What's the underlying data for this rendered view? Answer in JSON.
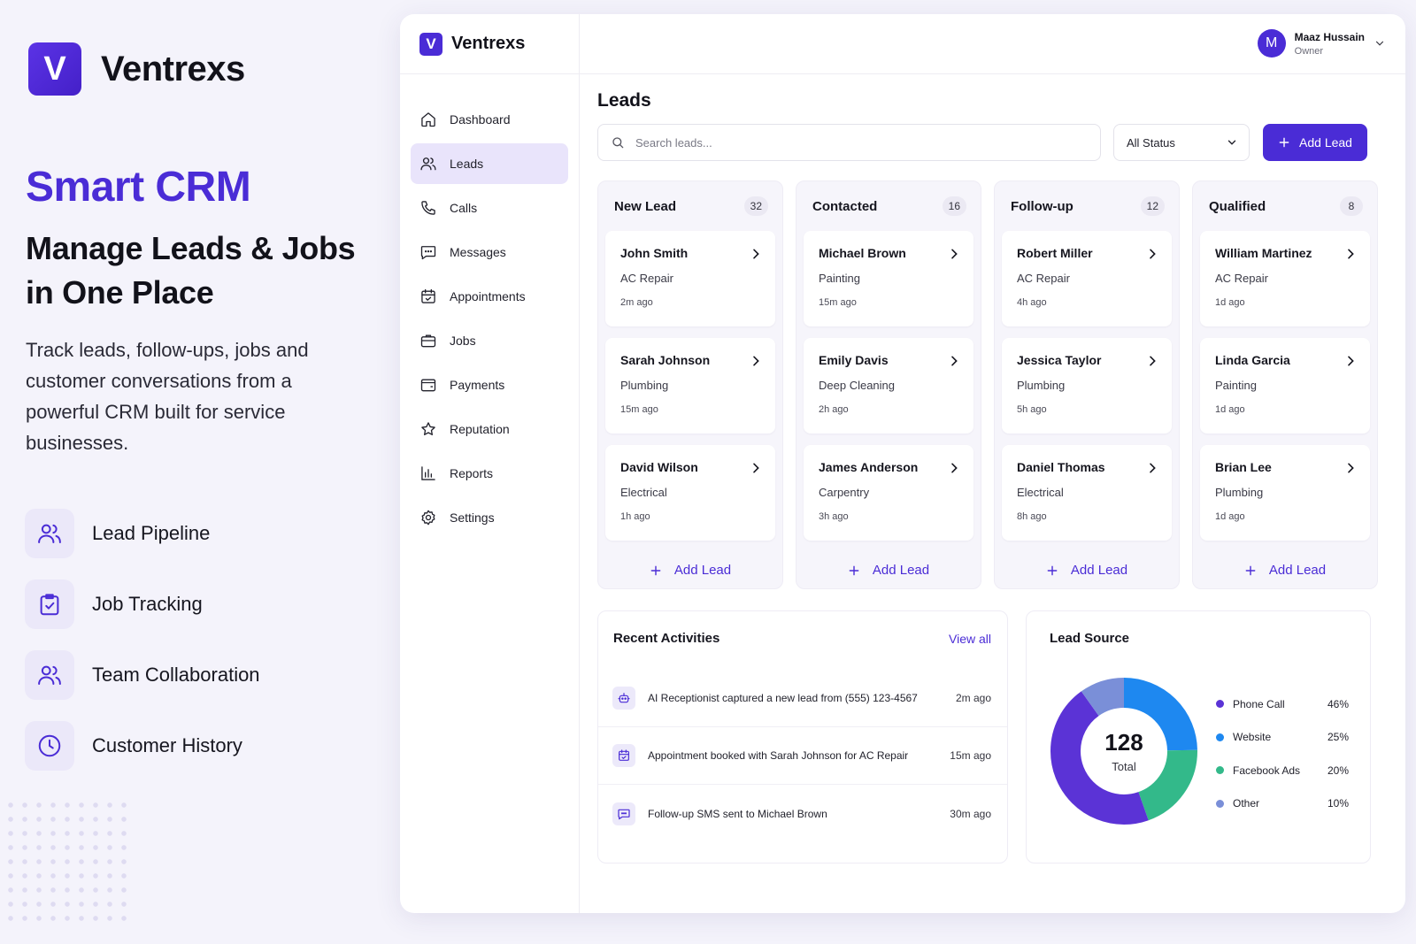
{
  "hero": {
    "brand_initial": "V",
    "brand_name": "Ventrexs",
    "kicker": "Smart CRM",
    "title": "Manage Leads & Jobs in One Place",
    "description": "Track leads, follow-ups, jobs and customer conversations from a powerful CRM built for service businesses.",
    "features": [
      {
        "label": "Lead Pipeline",
        "icon": "users-icon"
      },
      {
        "label": "Job Tracking",
        "icon": "clipboard-check-icon"
      },
      {
        "label": "Team Collaboration",
        "icon": "team-icon"
      },
      {
        "label": "Customer History",
        "icon": "clock-icon"
      }
    ]
  },
  "app": {
    "brand_initial": "V",
    "brand_name": "Ventrexs",
    "nav": [
      {
        "label": "Dashboard",
        "icon": "home-icon",
        "active": false
      },
      {
        "label": "Leads",
        "icon": "users-icon",
        "active": true
      },
      {
        "label": "Calls",
        "icon": "phone-icon",
        "active": false
      },
      {
        "label": "Messages",
        "icon": "message-icon",
        "active": false
      },
      {
        "label": "Appointments",
        "icon": "calendar-icon",
        "active": false
      },
      {
        "label": "Jobs",
        "icon": "briefcase-icon",
        "active": false
      },
      {
        "label": "Payments",
        "icon": "wallet-icon",
        "active": false
      },
      {
        "label": "Reputation",
        "icon": "star-icon",
        "active": false
      },
      {
        "label": "Reports",
        "icon": "bar-chart-icon",
        "active": false
      },
      {
        "label": "Settings",
        "icon": "gear-icon",
        "active": false
      }
    ],
    "user": {
      "initial": "M",
      "name": "Maaz Hussain",
      "role": "Owner"
    }
  },
  "leads_page": {
    "title": "Leads",
    "search_placeholder": "Search leads...",
    "status_filter": "All Status",
    "add_lead_label": "Add Lead",
    "columns": [
      {
        "title": "New Lead",
        "count": "32",
        "cards": [
          {
            "name": "John Smith",
            "service": "AC Repair",
            "time": "2m ago"
          },
          {
            "name": "Sarah Johnson",
            "service": "Plumbing",
            "time": "15m ago"
          },
          {
            "name": "David Wilson",
            "service": "Electrical",
            "time": "1h ago"
          }
        ]
      },
      {
        "title": "Contacted",
        "count": "16",
        "cards": [
          {
            "name": "Michael Brown",
            "service": "Painting",
            "time": "15m ago"
          },
          {
            "name": "Emily Davis",
            "service": "Deep Cleaning",
            "time": "2h ago"
          },
          {
            "name": "James Anderson",
            "service": "Carpentry",
            "time": "3h ago"
          }
        ]
      },
      {
        "title": "Follow-up",
        "count": "12",
        "cards": [
          {
            "name": "Robert Miller",
            "service": "AC Repair",
            "time": "4h ago"
          },
          {
            "name": "Jessica Taylor",
            "service": "Plumbing",
            "time": "5h ago"
          },
          {
            "name": "Daniel Thomas",
            "service": "Electrical",
            "time": "8h ago"
          }
        ]
      },
      {
        "title": "Qualified",
        "count": "8",
        "cards": [
          {
            "name": "William Martinez",
            "service": "AC Repair",
            "time": "1d ago"
          },
          {
            "name": "Linda Garcia",
            "service": "Painting",
            "time": "1d ago"
          },
          {
            "name": "Brian Lee",
            "service": "Plumbing",
            "time": "1d ago"
          }
        ]
      }
    ],
    "column_add_label": "Add Lead"
  },
  "activities": {
    "title": "Recent Activities",
    "view_all": "View all",
    "items": [
      {
        "text": "AI Receptionist captured a new lead from (555) 123-4567",
        "time": "2m ago",
        "icon": "robot-icon"
      },
      {
        "text": "Appointment booked with Sarah Johnson for AC Repair",
        "time": "15m ago",
        "icon": "calendar-icon"
      },
      {
        "text": "Follow-up SMS sent to Michael Brown",
        "time": "30m ago",
        "icon": "message-icon"
      }
    ]
  },
  "lead_source": {
    "title": "Lead Source",
    "total": "128",
    "total_label": "Total",
    "items": [
      {
        "name": "Phone Call",
        "value": "46%",
        "share": 46,
        "color": "#5b33d6"
      },
      {
        "name": "Website",
        "value": "25%",
        "share": 25,
        "color": "#1e88f0"
      },
      {
        "name": "Facebook Ads",
        "value": "20%",
        "share": 20,
        "color": "#33b98a"
      },
      {
        "name": "Other",
        "value": "10%",
        "share": 10,
        "color": "#7a8fd8"
      }
    ]
  },
  "colors": {
    "accent": "#4a2cd6",
    "background": "#f4f3fb"
  }
}
